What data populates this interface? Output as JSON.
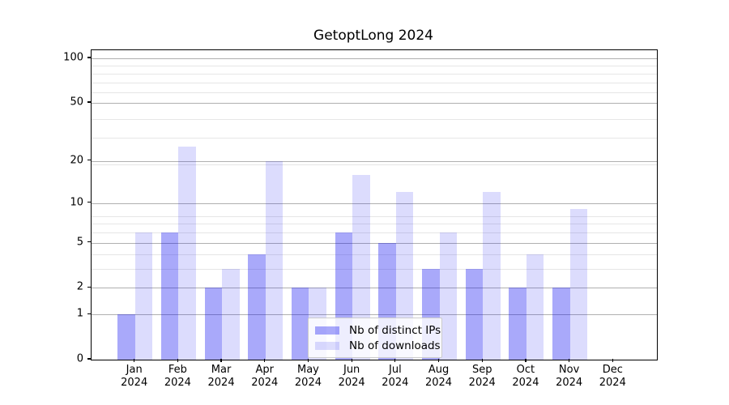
{
  "figure": {
    "background": "#ffffff"
  },
  "chart_data": {
    "type": "bar",
    "title": "GetoptLong 2024",
    "categories": [
      {
        "month": "Jan",
        "year": "2024"
      },
      {
        "month": "Feb",
        "year": "2024"
      },
      {
        "month": "Mar",
        "year": "2024"
      },
      {
        "month": "Apr",
        "year": "2024"
      },
      {
        "month": "May",
        "year": "2024"
      },
      {
        "month": "Jun",
        "year": "2024"
      },
      {
        "month": "Jul",
        "year": "2024"
      },
      {
        "month": "Aug",
        "year": "2024"
      },
      {
        "month": "Sep",
        "year": "2024"
      },
      {
        "month": "Oct",
        "year": "2024"
      },
      {
        "month": "Nov",
        "year": "2024"
      },
      {
        "month": "Dec",
        "year": "2024"
      }
    ],
    "series": [
      {
        "name": "Nb of distinct IPs",
        "color": "rgba(10,10,240,0.35)",
        "values": [
          1,
          6,
          2,
          4,
          2,
          6,
          5,
          3,
          3,
          2,
          2,
          0
        ]
      },
      {
        "name": "Nb of downloads",
        "color": "rgba(10,10,240,0.14)",
        "values": [
          6,
          25,
          3,
          20,
          2,
          16,
          12,
          6,
          12,
          4,
          9,
          0
        ]
      }
    ],
    "xlabel": "",
    "ylabel": "",
    "yscale": "log1p",
    "ylim": [
      0,
      100
    ],
    "yticks": [
      0,
      1,
      2,
      5,
      10,
      20,
      50,
      100
    ],
    "minor_gridline_values": [
      3,
      4,
      6,
      7,
      8,
      19,
      29,
      39,
      59,
      69,
      79,
      89
    ],
    "grid": true,
    "legend_position": "lower-center-inside",
    "colors": {
      "major_grid": "#b0b0b0",
      "minor_grid": "#e6e6e6",
      "spine": "#000000",
      "text": "#000000"
    }
  }
}
